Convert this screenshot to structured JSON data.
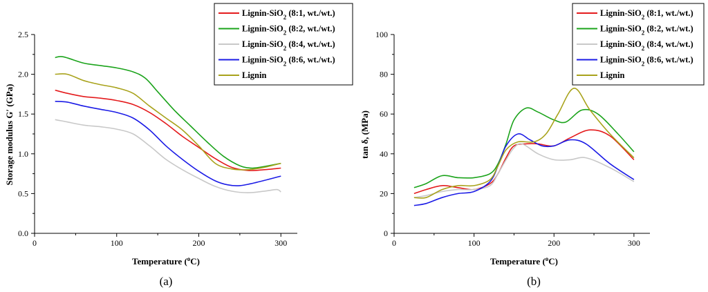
{
  "chart_data": [
    {
      "type": "line",
      "panel_label": "(a)",
      "xlabel_prefix": "Temperature (",
      "xlabel_sup": "o",
      "xlabel_suffix": "C)",
      "ylabel": "Storage modulus G′ (GPa)",
      "xlim": [
        0,
        320
      ],
      "ylim": [
        0,
        2.5
      ],
      "xticks": [
        0,
        100,
        200,
        300
      ],
      "xtick_labels": [
        "0",
        "100",
        "200",
        "300"
      ],
      "yticks": [
        0,
        0.5,
        1.0,
        1.5,
        2.0,
        2.5
      ],
      "ytick_labels": [
        "0.0",
        "0.5",
        "1.0",
        "1.5",
        "2.0",
        "2.5"
      ],
      "legend_position": "top-right",
      "series": [
        {
          "name": "Lignin-SiO2 (8:1, wt./wt.)",
          "color": "#e41a1c",
          "x": [
            25,
            40,
            60,
            80,
            100,
            120,
            140,
            160,
            180,
            200,
            220,
            240,
            260,
            280,
            300
          ],
          "y": [
            1.8,
            1.76,
            1.72,
            1.7,
            1.67,
            1.62,
            1.52,
            1.38,
            1.22,
            1.08,
            0.94,
            0.83,
            0.79,
            0.8,
            0.82
          ]
        },
        {
          "name": "Lignin-SiO2 (8:2, wt./wt.)",
          "color": "#1aa31a",
          "x": [
            25,
            35,
            60,
            80,
            100,
            120,
            135,
            150,
            170,
            190,
            210,
            230,
            250,
            265,
            280,
            300
          ],
          "y": [
            2.21,
            2.22,
            2.14,
            2.11,
            2.08,
            2.03,
            1.95,
            1.78,
            1.55,
            1.35,
            1.15,
            0.97,
            0.85,
            0.82,
            0.84,
            0.88
          ]
        },
        {
          "name": "Lignin-SiO2 (8:4, wt./wt.)",
          "color": "#c8c8c8",
          "x": [
            25,
            40,
            60,
            80,
            100,
            120,
            140,
            160,
            180,
            200,
            220,
            240,
            260,
            280,
            295,
            300
          ],
          "y": [
            1.43,
            1.4,
            1.36,
            1.34,
            1.31,
            1.25,
            1.1,
            0.93,
            0.8,
            0.69,
            0.59,
            0.53,
            0.51,
            0.53,
            0.55,
            0.52
          ]
        },
        {
          "name": "Lignin-SiO2 (8:6, wt./wt.)",
          "color": "#1a1ae6",
          "x": [
            25,
            40,
            60,
            80,
            100,
            120,
            140,
            160,
            180,
            200,
            220,
            235,
            250,
            270,
            300
          ],
          "y": [
            1.66,
            1.65,
            1.6,
            1.56,
            1.52,
            1.45,
            1.3,
            1.1,
            0.93,
            0.78,
            0.66,
            0.61,
            0.6,
            0.64,
            0.72
          ]
        },
        {
          "name": "Lignin",
          "color": "#a8a21a",
          "x": [
            25,
            40,
            60,
            80,
            100,
            120,
            140,
            160,
            180,
            200,
            220,
            240,
            260,
            280,
            300
          ],
          "y": [
            2.0,
            2.0,
            1.92,
            1.87,
            1.83,
            1.76,
            1.6,
            1.45,
            1.3,
            1.1,
            0.88,
            0.81,
            0.8,
            0.83,
            0.88
          ]
        }
      ]
    },
    {
      "type": "line",
      "panel_label": "(b)",
      "xlabel_prefix": "Temperature (",
      "xlabel_sup": "o",
      "xlabel_suffix": "C)",
      "ylabel": "tan δ, (MPa)",
      "xlim": [
        0,
        320
      ],
      "ylim": [
        0,
        100
      ],
      "xticks": [
        0,
        100,
        200,
        300
      ],
      "xtick_labels": [
        "0",
        "100",
        "200",
        "300"
      ],
      "yticks": [
        0,
        20,
        40,
        60,
        80,
        100
      ],
      "ytick_labels": [
        "0",
        "20",
        "40",
        "60",
        "80",
        "100"
      ],
      "legend_position": "top-right",
      "series": [
        {
          "name": "Lignin-SiO2 (8:1, wt./wt.)",
          "color": "#e41a1c",
          "x": [
            25,
            40,
            60,
            80,
            100,
            120,
            130,
            140,
            150,
            165,
            180,
            200,
            220,
            245,
            270,
            300
          ],
          "y": [
            20,
            22,
            24,
            23,
            22,
            25,
            30,
            38,
            44,
            45,
            45,
            44,
            48,
            52,
            49,
            37
          ]
        },
        {
          "name": "Lignin-SiO2 (8:2, wt./wt.)",
          "color": "#1aa31a",
          "x": [
            25,
            40,
            60,
            80,
            100,
            120,
            130,
            140,
            150,
            165,
            180,
            200,
            215,
            235,
            255,
            280,
            300
          ],
          "y": [
            23,
            25,
            29,
            28,
            28,
            30,
            35,
            45,
            57,
            63,
            61,
            57,
            56,
            62,
            60,
            50,
            41
          ]
        },
        {
          "name": "Lignin-SiO2 (8:4, wt./wt.)",
          "color": "#c8c8c8",
          "x": [
            25,
            40,
            60,
            80,
            100,
            120,
            130,
            140,
            150,
            160,
            180,
            200,
            220,
            240,
            270,
            300
          ],
          "y": [
            18,
            19,
            21,
            22,
            22,
            24,
            30,
            37,
            43,
            45,
            40,
            37,
            37,
            38,
            33,
            26
          ]
        },
        {
          "name": "Lignin-SiO2 (8:6, wt./wt.)",
          "color": "#1a1ae6",
          "x": [
            25,
            40,
            60,
            80,
            100,
            120,
            130,
            140,
            155,
            170,
            185,
            200,
            220,
            240,
            270,
            300
          ],
          "y": [
            14,
            15,
            18,
            20,
            21,
            26,
            34,
            44,
            50,
            47,
            44,
            44,
            47,
            45,
            35,
            27
          ]
        },
        {
          "name": "Lignin",
          "color": "#a8a21a",
          "x": [
            25,
            40,
            60,
            80,
            100,
            120,
            130,
            140,
            155,
            175,
            190,
            205,
            225,
            245,
            270,
            300
          ],
          "y": [
            18,
            18,
            22,
            24,
            24,
            27,
            34,
            42,
            46,
            46,
            50,
            60,
            73,
            62,
            50,
            38
          ]
        }
      ]
    }
  ]
}
